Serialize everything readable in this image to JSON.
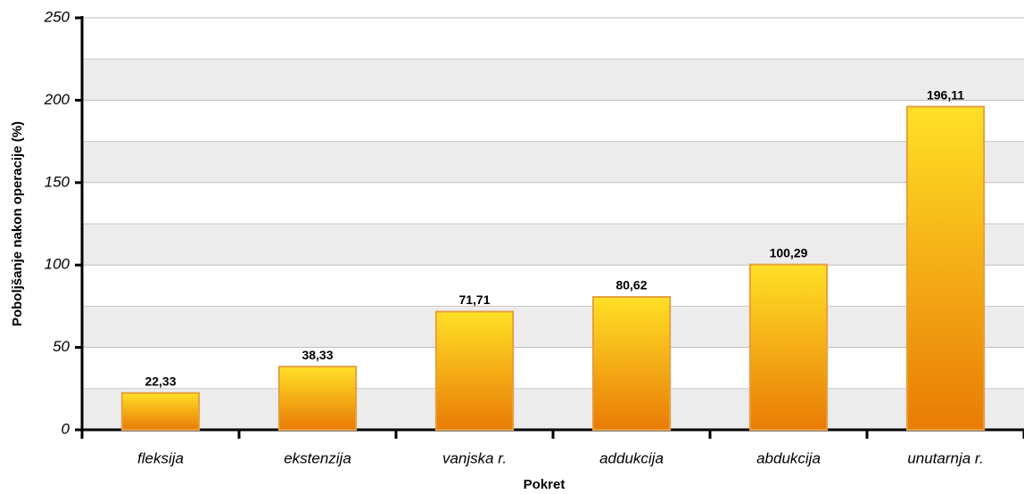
{
  "chart_data": {
    "type": "bar",
    "x_label": "Pokret",
    "y_label": "Poboljšanje nakon operacije (%)",
    "categories": [
      "fleksija",
      "ekstenzija",
      "vanjska r.",
      "addukcija",
      "abdukcija",
      "unutarnja r."
    ],
    "values": [
      22.33,
      38.33,
      71.71,
      80.62,
      100.29,
      196.11
    ],
    "value_labels": [
      "22,33",
      "38,33",
      "71,71",
      "80,62",
      "100,29",
      "196,11"
    ],
    "color": "#f2a81a",
    "ylim": [
      0,
      250
    ],
    "yticks": [
      0,
      50,
      100,
      150,
      200,
      250
    ],
    "grid": true
  }
}
